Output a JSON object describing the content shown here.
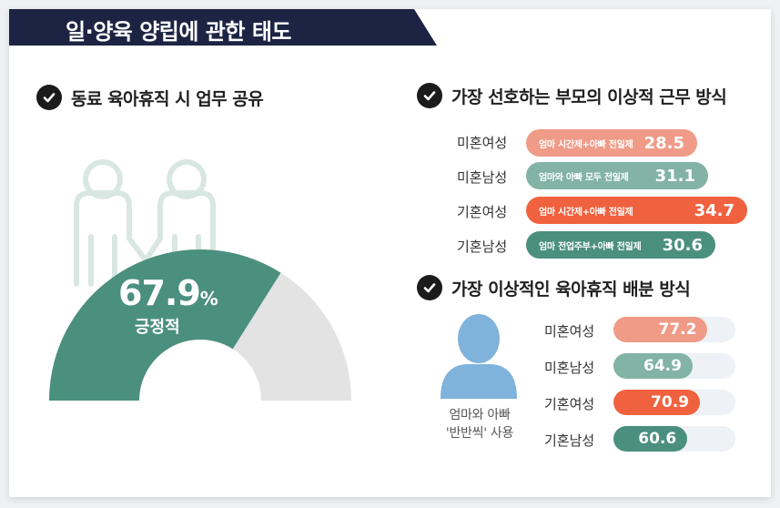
{
  "title": "일·양육 양립에 관한 태도",
  "colors": {
    "navy": "#1d2443",
    "teal": "#4b8f7f",
    "light_teal": "#82b3a5",
    "salmon": "#ef9b87",
    "orange": "#f0623f",
    "track": "#eef1f5",
    "gauge_bg": "#e3e3e3",
    "person_blue": "#7fb3dc"
  },
  "section1": {
    "heading": "동료 육아휴직 시 업무 공유",
    "value_text": "67.9",
    "unit": "%",
    "label": "긍정적",
    "icon": "two-people-holding-hands-icon"
  },
  "section2": {
    "heading": "가장 선호하는 부모의 이상적 근무 방식",
    "rows": [
      {
        "group": "미혼여성",
        "desc": "엄마 시간제+아빠 전일제",
        "value": "28.5",
        "color": "#ef9b87"
      },
      {
        "group": "미혼남성",
        "desc": "엄마와 아빠 모두 전일제",
        "value": "31.1",
        "color": "#82b3a5"
      },
      {
        "group": "기혼여성",
        "desc": "엄마 시간제+아빠 전일제",
        "value": "34.7",
        "color": "#f0623f"
      },
      {
        "group": "기혼남성",
        "desc": "엄마 전업주부+아빠 전일제",
        "value": "30.6",
        "color": "#4b8f7f"
      }
    ]
  },
  "section3": {
    "heading": "가장 이상적인 육아휴직 배분 방식",
    "caption_line1": "엄마와 아빠",
    "caption_line2": "'반반씩' 사용",
    "rows": [
      {
        "group": "미혼여성",
        "value": "77.2",
        "color": "#ef9b87"
      },
      {
        "group": "미혼남성",
        "value": "64.9",
        "color": "#82b3a5"
      },
      {
        "group": "기혼여성",
        "value": "70.9",
        "color": "#f0623f"
      },
      {
        "group": "기혼남성",
        "value": "60.6",
        "color": "#4b8f7f"
      }
    ]
  },
  "chart_data": [
    {
      "type": "gauge",
      "title": "동료 육아휴직 시 업무 공유",
      "label": "긍정적",
      "value": 67.9,
      "unit": "%",
      "ylim": [
        0,
        100
      ]
    },
    {
      "type": "bar",
      "title": "가장 선호하는 부모의 이상적 근무 방식",
      "categories": [
        "미혼여성",
        "미혼남성",
        "기혼여성",
        "기혼남성"
      ],
      "bar_labels": [
        "엄마 시간제+아빠 전일제",
        "엄마와 아빠 모두 전일제",
        "엄마 시간제+아빠 전일제",
        "엄마 전업주부+아빠 전일제"
      ],
      "values": [
        28.5,
        31.1,
        34.7,
        30.6
      ]
    },
    {
      "type": "bar",
      "title": "가장 이상적인 육아휴직 배분 방식",
      "categories": [
        "미혼여성",
        "미혼남성",
        "기혼여성",
        "기혼남성"
      ],
      "values": [
        77.2,
        64.9,
        70.9,
        60.6
      ],
      "ylim": [
        0,
        100
      ]
    }
  ]
}
